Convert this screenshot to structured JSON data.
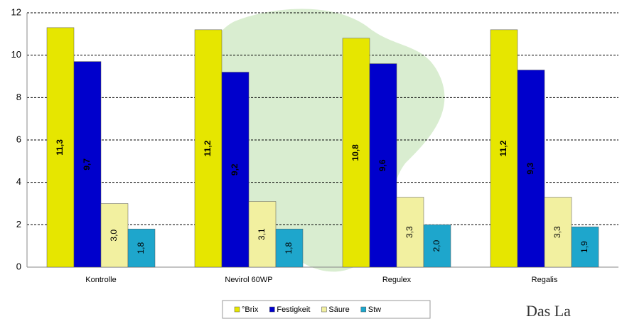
{
  "chart_data": {
    "type": "bar",
    "categories": [
      "Kontrolle",
      "Nevirol 60WP",
      "Regulex",
      "Regalis"
    ],
    "series": [
      {
        "name": "°Brix",
        "color": "#e6e600",
        "values": [
          11.3,
          11.2,
          10.8,
          11.2
        ],
        "value_labels": [
          "11,3",
          "11,2",
          "10,8",
          "11,2"
        ]
      },
      {
        "name": "Festigkeit",
        "color": "#0000cc",
        "values": [
          9.7,
          9.2,
          9.6,
          9.3
        ],
        "value_labels": [
          "9,7",
          "9,2",
          "9,6",
          "9,3"
        ]
      },
      {
        "name": "Säure",
        "color": "#f2f0a0",
        "values": [
          3.0,
          3.1,
          3.3,
          3.3
        ],
        "value_labels": [
          "3,0",
          "3,1",
          "3,3",
          "3,3"
        ]
      },
      {
        "name": "Stw",
        "color": "#1ea6cc",
        "values": [
          1.8,
          1.8,
          2.0,
          1.9
        ],
        "value_labels": [
          "1,8",
          "1,8",
          "2,0",
          "1,9"
        ]
      }
    ],
    "ylim": [
      0,
      12
    ],
    "yticks": [
      0,
      2,
      4,
      6,
      8,
      10,
      12
    ],
    "grid": true,
    "logo_text": "Das La"
  }
}
